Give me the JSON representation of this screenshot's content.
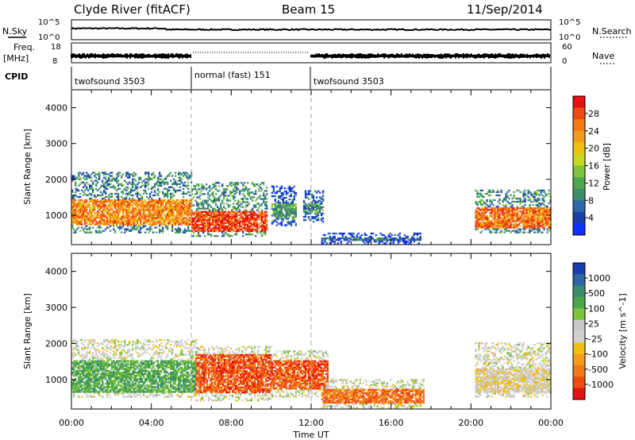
{
  "header": {
    "station": "Clyde River (fitACF)",
    "beam": "Beam 15",
    "date": "11/Sep/2014"
  },
  "status": {
    "nsky_label": "N.Sky",
    "nsky_ticks": [
      "10^5",
      "10^0"
    ],
    "nsearch_label": "N.Search",
    "nsearch_ticks": [
      "10^5",
      "10^0"
    ],
    "freq_label": "Freq.",
    "freq_unit": "[MHz]",
    "freq_ticks": [
      "18",
      "8"
    ],
    "nave_label": "Nave",
    "nave_ticks": [
      "60",
      "0"
    ],
    "cpid_label": "CPID",
    "modes": [
      {
        "name": "twofsound 3503",
        "start": 0,
        "end": 6
      },
      {
        "name": "normal (fast) 151",
        "start": 6,
        "end": 12
      },
      {
        "name": "twofsound 3503",
        "start": 12,
        "end": 24
      }
    ]
  },
  "time_axis": {
    "label": "Time UT",
    "ticks": [
      "00:00",
      "04:00",
      "08:00",
      "12:00",
      "16:00",
      "20:00",
      "00:00"
    ]
  },
  "chart_data": [
    {
      "type": "heatmap",
      "quantity": "Power",
      "ylabel": "Slant Range [km]",
      "ylim": [
        180,
        4500
      ],
      "yticks": [
        1000,
        2000,
        3000,
        4000
      ],
      "xlim": [
        0,
        24
      ],
      "colorbar": {
        "label": "Power [dB]",
        "ticks": [
          "4",
          "8",
          "12",
          "16",
          "20",
          "24",
          "28"
        ],
        "colors": [
          "#1030ff",
          "#1a3fb0",
          "#2f66a8",
          "#3b8f6a",
          "#4aa84a",
          "#7cc43a",
          "#c8d81a",
          "#f0c010",
          "#f59a1a",
          "#f57a10",
          "#f04a10",
          "#e81010"
        ]
      },
      "regions": [
        {
          "t": [
            0,
            6
          ],
          "r": [
            500,
            2200
          ],
          "core": [
            700,
            1400
          ],
          "level": 0.75
        },
        {
          "t": [
            6,
            9.8
          ],
          "r": [
            400,
            1900
          ],
          "core": [
            500,
            1100
          ],
          "level": 0.9
        },
        {
          "t": [
            10,
            11.2
          ],
          "r": [
            700,
            1800
          ],
          "core": [
            900,
            1300
          ],
          "level": 0.35
        },
        {
          "t": [
            11.6,
            12.6
          ],
          "r": [
            800,
            1700
          ],
          "core": [
            1000,
            1300
          ],
          "level": 0.3
        },
        {
          "t": [
            12.5,
            17.5
          ],
          "r": [
            200,
            500
          ],
          "core": [
            250,
            350
          ],
          "level": 0.2
        },
        {
          "t": [
            20.2,
            24
          ],
          "r": [
            500,
            1700
          ],
          "core": [
            600,
            1200
          ],
          "level": 0.8
        }
      ]
    },
    {
      "type": "heatmap",
      "quantity": "Velocity",
      "ylabel": "Slant Range [km]",
      "ylim": [
        180,
        4500
      ],
      "yticks": [
        1000,
        2000,
        3000,
        4000
      ],
      "xlim": [
        0,
        24
      ],
      "colorbar": {
        "label": "Velocity [m s^-1]",
        "ticks": [
          "1000",
          "500",
          "100",
          "25",
          "-25",
          "-100",
          "-500",
          "-1000"
        ],
        "colors": [
          "#1a3fb0",
          "#2f66a8",
          "#3b8f6a",
          "#4aa84a",
          "#7cc43a",
          "#c8c8c8",
          "#d0d0d0",
          "#f0c010",
          "#f59a1a",
          "#f07a1a",
          "#f04a10",
          "#e81010"
        ]
      },
      "regions": [
        {
          "t": [
            0,
            6.2
          ],
          "r": [
            500,
            2100
          ],
          "core": [
            600,
            1500
          ],
          "level": 0.3
        },
        {
          "t": [
            6.2,
            10
          ],
          "r": [
            400,
            1900
          ],
          "core": [
            600,
            1700
          ],
          "level": 0.85
        },
        {
          "t": [
            10,
            12.8
          ],
          "r": [
            500,
            1800
          ],
          "core": [
            700,
            1500
          ],
          "level": 0.85
        },
        {
          "t": [
            12.5,
            17.6
          ],
          "r": [
            200,
            1000
          ],
          "core": [
            300,
            700
          ],
          "level": 0.8
        },
        {
          "t": [
            20.2,
            24
          ],
          "r": [
            500,
            2000
          ],
          "core": [
            600,
            1300
          ],
          "level": 0.55
        }
      ]
    }
  ]
}
